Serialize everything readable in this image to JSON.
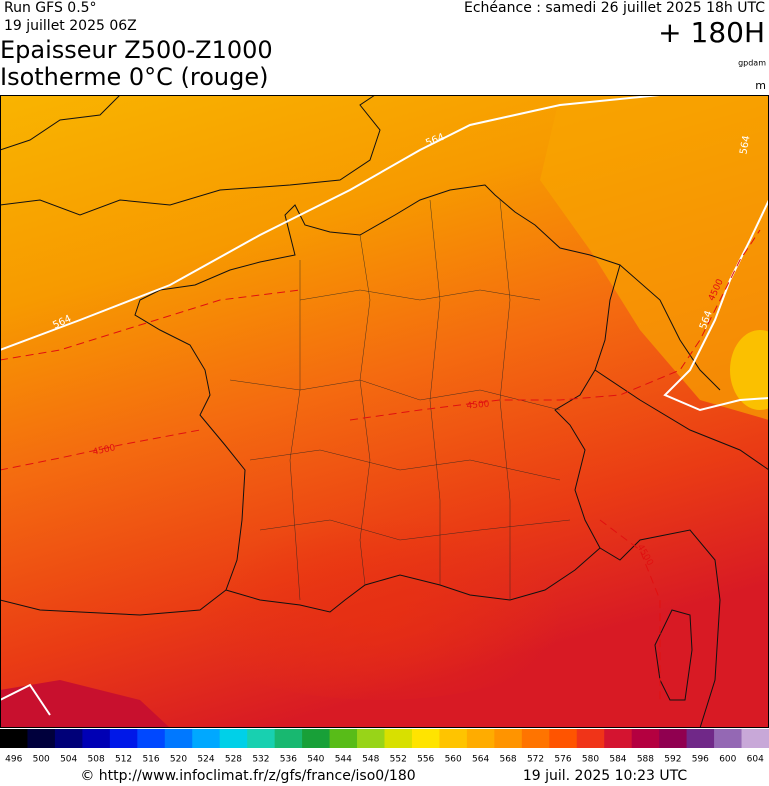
{
  "header": {
    "run": "Run GFS 0.5°",
    "run_date": "19 juillet 2025 06Z",
    "valid": "Echéance : samedi 26 juillet 2025 18h UTC",
    "lead": "+ 180H",
    "title_line1": "Epaisseur Z500-Z1000",
    "title_line2": "Isotherme 0°C (rouge)",
    "unit1": "gpdam",
    "unit2": "m"
  },
  "contours": {
    "thickness_labels": [
      564,
      564,
      564,
      564
    ],
    "isotherm_labels": [
      4500,
      4500,
      4500,
      4500
    ]
  },
  "colorbar": {
    "labels": [
      496,
      500,
      504,
      508,
      512,
      516,
      520,
      524,
      528,
      532,
      536,
      540,
      544,
      548,
      552,
      556,
      560,
      564,
      568,
      572,
      576,
      580,
      584,
      588,
      592,
      596,
      600,
      604
    ],
    "colors": [
      "#000000",
      "#00003c",
      "#000078",
      "#0000b4",
      "#0018e8",
      "#0048ff",
      "#0078ff",
      "#00a8ff",
      "#00d0e8",
      "#18d0b0",
      "#18b870",
      "#18a038",
      "#58bc18",
      "#98d418",
      "#d8e000",
      "#ffe400",
      "#ffc400",
      "#ffac00",
      "#ff9400",
      "#ff7400",
      "#ff5400",
      "#f03418",
      "#d41430",
      "#b40040",
      "#900050",
      "#702888",
      "#9468b4",
      "#c8a8d8"
    ]
  },
  "footer": {
    "url": "© http://www.infoclimat.fr/z/gfs/france/iso0/180",
    "generated": "19 juil. 2025 10:23 UTC"
  }
}
